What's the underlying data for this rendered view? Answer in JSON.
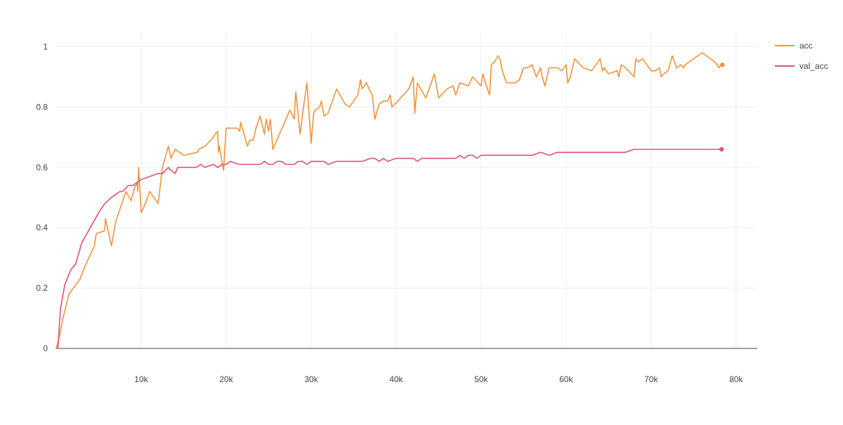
{
  "chart_data": {
    "type": "line",
    "xlim": [
      0,
      82500
    ],
    "ylim": [
      0,
      1.05
    ],
    "x_ticks": [
      10000,
      20000,
      30000,
      40000,
      50000,
      60000,
      70000,
      80000
    ],
    "x_tick_labels": [
      "10k",
      "20k",
      "30k",
      "40k",
      "50k",
      "60k",
      "70k",
      "80k"
    ],
    "y_ticks": [
      0,
      0.2,
      0.4,
      0.6,
      0.8,
      1
    ],
    "y_tick_labels": [
      "0",
      "0.2",
      "0.4",
      "0.6",
      "0.8",
      "1"
    ],
    "grid": true,
    "legend_position": "top-right",
    "series": [
      {
        "name": "acc",
        "color": "#f0943b",
        "x": [
          0,
          300,
          800,
          1500,
          2800,
          3500,
          4500,
          4700,
          5700,
          5800,
          6500,
          7000,
          8200,
          8800,
          9200,
          9500,
          9600,
          9700,
          9800,
          10000,
          10500,
          11000,
          11500,
          12000,
          12500,
          13200,
          13500,
          14000,
          15000,
          16600,
          16800,
          17500,
          18200,
          19000,
          19100,
          19200,
          19500,
          19700,
          20000,
          21300,
          21600,
          21700,
          22500,
          22800,
          23200,
          23500,
          24000,
          24500,
          24700,
          25000,
          25200,
          25500,
          27500,
          28000,
          28200,
          28700,
          29200,
          29500,
          30000,
          30300,
          30500,
          31000,
          31200,
          31500,
          32000,
          33000,
          34000,
          34500,
          35500,
          35800,
          36000,
          36500,
          37000,
          37200,
          37500,
          38000,
          38500,
          39000,
          39300,
          39500,
          40200,
          41500,
          42000,
          42200,
          42500,
          43500,
          44000,
          44500,
          45000,
          46000,
          46700,
          47000,
          47500,
          48500,
          49000,
          50000,
          50200,
          50500,
          51000,
          51200,
          51600,
          52000,
          52200,
          52500,
          53000,
          53500,
          54000,
          54500,
          55000,
          55500,
          56000,
          56500,
          57000,
          57200,
          57500,
          58000,
          58500,
          59000,
          59500,
          60000,
          60200,
          60500,
          61000,
          62000,
          63000,
          64000,
          64300,
          64500,
          65000,
          66000,
          66200,
          66500,
          67000,
          68000,
          68200,
          68500,
          69000,
          70000,
          70500,
          71000,
          71200,
          71500,
          72000,
          72500,
          73000,
          73500,
          73800,
          74000,
          74500,
          76000,
          77500,
          78000,
          78200,
          78400
        ],
        "values": [
          0.0,
          0.03,
          0.1,
          0.18,
          0.23,
          0.28,
          0.34,
          0.38,
          0.39,
          0.43,
          0.34,
          0.42,
          0.52,
          0.49,
          0.53,
          0.55,
          0.52,
          0.6,
          0.55,
          0.45,
          0.48,
          0.52,
          0.5,
          0.48,
          0.6,
          0.67,
          0.63,
          0.66,
          0.64,
          0.65,
          0.66,
          0.67,
          0.69,
          0.72,
          0.65,
          0.67,
          0.62,
          0.59,
          0.73,
          0.73,
          0.72,
          0.75,
          0.67,
          0.69,
          0.69,
          0.73,
          0.77,
          0.71,
          0.76,
          0.72,
          0.76,
          0.66,
          0.79,
          0.76,
          0.85,
          0.71,
          0.82,
          0.88,
          0.68,
          0.78,
          0.79,
          0.8,
          0.82,
          0.77,
          0.78,
          0.86,
          0.81,
          0.8,
          0.84,
          0.89,
          0.86,
          0.88,
          0.85,
          0.84,
          0.76,
          0.81,
          0.82,
          0.82,
          0.84,
          0.8,
          0.82,
          0.86,
          0.9,
          0.78,
          0.88,
          0.83,
          0.87,
          0.91,
          0.83,
          0.86,
          0.87,
          0.84,
          0.88,
          0.87,
          0.9,
          0.87,
          0.91,
          0.88,
          0.84,
          0.94,
          0.95,
          0.97,
          0.96,
          0.92,
          0.88,
          0.88,
          0.88,
          0.89,
          0.93,
          0.93,
          0.94,
          0.9,
          0.93,
          0.9,
          0.87,
          0.93,
          0.93,
          0.93,
          0.92,
          0.94,
          0.88,
          0.9,
          0.96,
          0.93,
          0.92,
          0.96,
          0.92,
          0.93,
          0.91,
          0.92,
          0.9,
          0.94,
          0.93,
          0.9,
          0.96,
          0.95,
          0.96,
          0.92,
          0.92,
          0.93,
          0.9,
          0.91,
          0.92,
          0.97,
          0.93,
          0.94,
          0.93,
          0.94,
          0.95,
          0.98,
          0.95,
          0.93,
          0.94,
          0.94
        ]
      },
      {
        "name": "val_acc",
        "color": "#e0517a",
        "x": [
          200,
          500,
          1000,
          1700,
          2300,
          3000,
          4000,
          5000,
          5700,
          6500,
          7000,
          7500,
          7800,
          8500,
          9000,
          9500,
          10000,
          11000,
          12000,
          12500,
          13200,
          13500,
          14000,
          14300,
          14700,
          15500,
          16500,
          17000,
          17500,
          18500,
          19000,
          19500,
          20000,
          20500,
          21500,
          22000,
          23000,
          24000,
          24500,
          25000,
          25500,
          26000,
          26500,
          27000,
          27500,
          28000,
          28500,
          29000,
          29500,
          30000,
          30500,
          31500,
          32000,
          33000,
          34000,
          34500,
          35000,
          36000,
          37000,
          37500,
          38000,
          38500,
          39000,
          40000,
          40500,
          41000,
          41500,
          42000,
          42500,
          43000,
          43500,
          44000,
          45000,
          45500,
          46000,
          47000,
          47500,
          48000,
          48500,
          49000,
          49500,
          50000,
          51000,
          52000,
          53000,
          54000,
          55000,
          56000,
          57000,
          58000,
          59000,
          60000,
          60500,
          61000,
          61500,
          62000,
          62500,
          63000,
          64000,
          65000,
          66000,
          67000,
          68000,
          69000,
          70000,
          71000,
          72000,
          72500,
          73000,
          73500,
          74000,
          75000,
          76000,
          77000,
          78000,
          78300
        ],
        "values": [
          0.0,
          0.13,
          0.21,
          0.26,
          0.28,
          0.35,
          0.4,
          0.45,
          0.48,
          0.5,
          0.51,
          0.52,
          0.52,
          0.54,
          0.54,
          0.55,
          0.56,
          0.57,
          0.58,
          0.58,
          0.6,
          0.59,
          0.58,
          0.6,
          0.6,
          0.6,
          0.6,
          0.61,
          0.6,
          0.61,
          0.6,
          0.61,
          0.61,
          0.62,
          0.61,
          0.61,
          0.61,
          0.61,
          0.62,
          0.61,
          0.61,
          0.62,
          0.62,
          0.61,
          0.61,
          0.61,
          0.62,
          0.62,
          0.61,
          0.62,
          0.62,
          0.62,
          0.61,
          0.62,
          0.62,
          0.62,
          0.62,
          0.62,
          0.63,
          0.63,
          0.62,
          0.63,
          0.62,
          0.63,
          0.63,
          0.63,
          0.63,
          0.63,
          0.62,
          0.63,
          0.63,
          0.63,
          0.63,
          0.63,
          0.63,
          0.63,
          0.64,
          0.63,
          0.64,
          0.64,
          0.63,
          0.64,
          0.64,
          0.64,
          0.64,
          0.64,
          0.64,
          0.64,
          0.65,
          0.64,
          0.65,
          0.65,
          0.65,
          0.65,
          0.65,
          0.65,
          0.65,
          0.65,
          0.65,
          0.65,
          0.65,
          0.65,
          0.66,
          0.66,
          0.66,
          0.66,
          0.66,
          0.66,
          0.66,
          0.66,
          0.66,
          0.66,
          0.66,
          0.66,
          0.66,
          0.66
        ]
      }
    ]
  }
}
